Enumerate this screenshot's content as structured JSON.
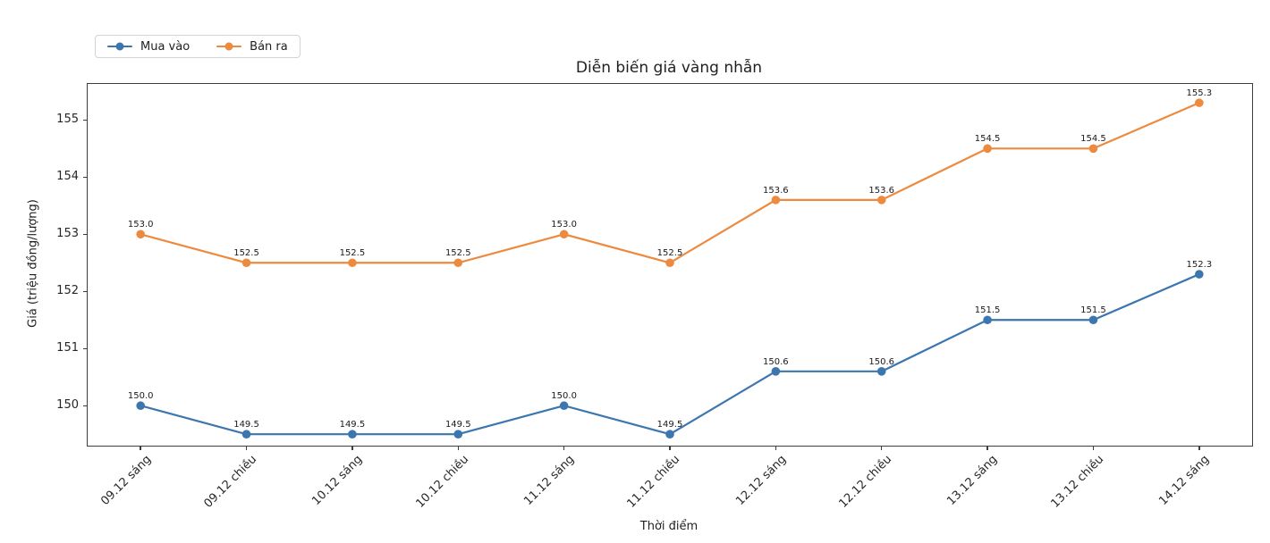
{
  "chart_data": {
    "type": "line",
    "title": "Diễn biến giá vàng nhẫn",
    "xlabel": "Thời điểm",
    "ylabel": "Giá (triệu đồng/lượng)",
    "categories": [
      "09.12 sáng",
      "09.12 chiều",
      "10.12 sáng",
      "10.12 chiều",
      "11.12 sáng",
      "11.12 chiều",
      "12.12 sáng",
      "12.12 chiều",
      "13.12 sáng",
      "13.12 chiều",
      "14.12 sáng"
    ],
    "series": [
      {
        "name": "Mua vào",
        "color": "#3c76af",
        "values": [
          150.0,
          149.5,
          149.5,
          149.5,
          150.0,
          149.5,
          150.6,
          150.6,
          151.5,
          151.5,
          152.3
        ]
      },
      {
        "name": "Bán ra",
        "color": "#ec8a3f",
        "values": [
          153.0,
          152.5,
          152.5,
          152.5,
          153.0,
          152.5,
          153.6,
          153.6,
          154.5,
          154.5,
          155.3
        ]
      }
    ],
    "yticks": [
      150,
      151,
      152,
      153,
      154,
      155
    ],
    "ylim": [
      149.3,
      155.63
    ],
    "grid": false,
    "legend_position": "upper-left-outside",
    "marker": "circle",
    "point_labels": "one-decimal",
    "axis_color": "#3d3d3d",
    "background": "#ffffff"
  }
}
